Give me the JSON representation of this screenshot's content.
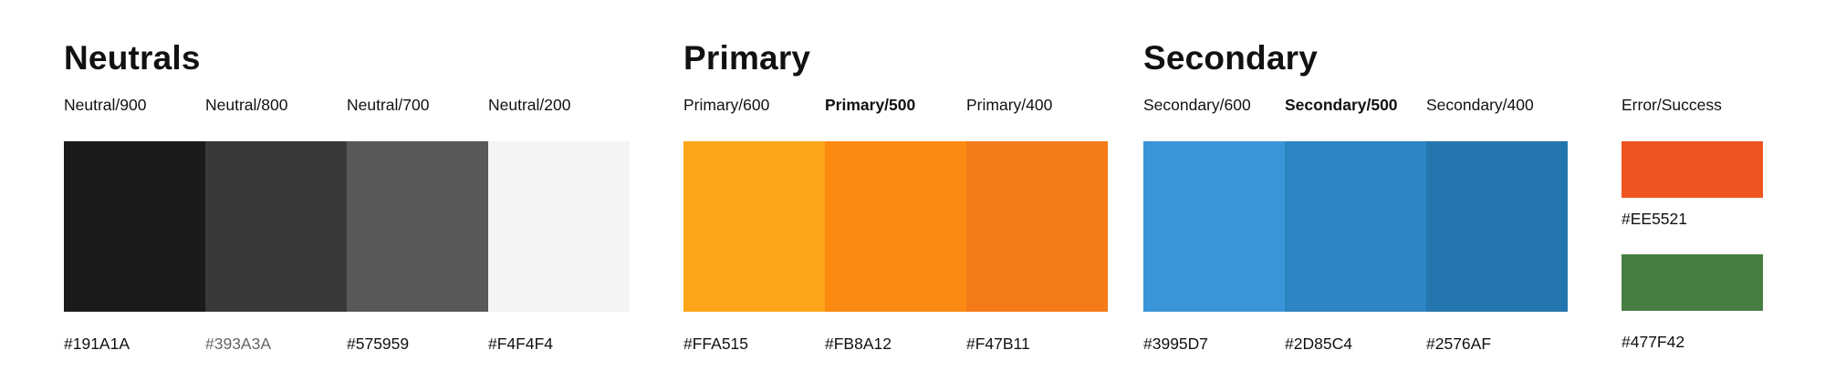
{
  "neutrals": {
    "title": "Neutrals",
    "items": [
      {
        "label": "Neutral/900",
        "hex": "#191A1A",
        "color": "#1b1b1b"
      },
      {
        "label": "Neutral/800",
        "hex": "#393A3A",
        "color": "#393939"
      },
      {
        "label": "Neutral/700",
        "hex": "#575959",
        "color": "#575958"
      },
      {
        "label": "Neutral/200",
        "hex": "#F4F4F4",
        "color": "#f4f4f4"
      }
    ]
  },
  "primary": {
    "title": "Primary",
    "items": [
      {
        "label": "Primary/600",
        "hex": "#FFA515",
        "color": "#ffa518"
      },
      {
        "label": "Primary/500",
        "hex": "#FB8A12",
        "color": "#fb8a12"
      },
      {
        "label": "Primary/400",
        "hex": "#F47B11",
        "color": "#f47b18"
      }
    ]
  },
  "secondary": {
    "title": "Secondary",
    "items": [
      {
        "label": "Secondary/600",
        "hex": "#3995D7",
        "color": "#3995d7"
      },
      {
        "label": "Secondary/500",
        "hex": "#2D85C4",
        "color": "#2d85c4"
      },
      {
        "label": "Secondary/400",
        "hex": "#2576AF",
        "color": "#2576af"
      }
    ]
  },
  "error_success": {
    "label": "Error/Success",
    "items": [
      {
        "hex": "#EE5521",
        "color": "#ee5521"
      },
      {
        "hex": "#477F42",
        "color": "#477f42"
      }
    ]
  }
}
